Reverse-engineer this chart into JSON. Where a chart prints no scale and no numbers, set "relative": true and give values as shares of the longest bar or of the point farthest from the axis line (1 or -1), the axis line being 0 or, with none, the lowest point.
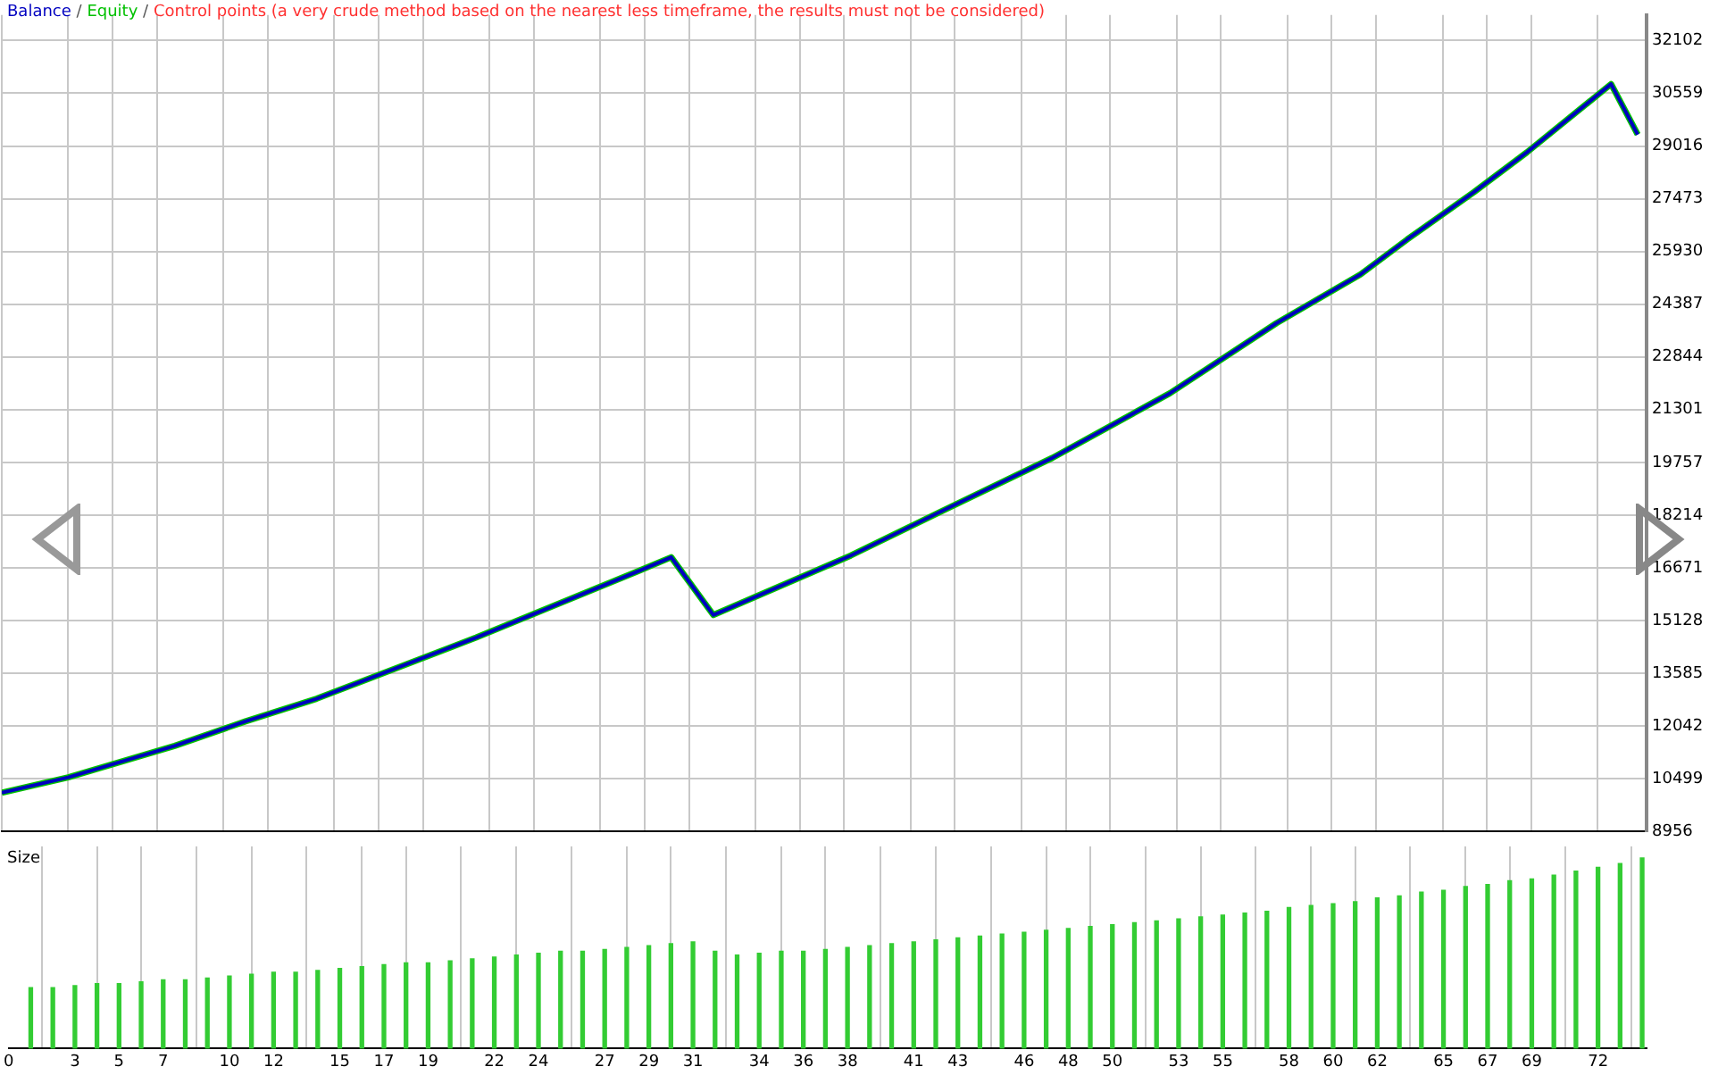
{
  "chart_data": [
    {
      "type": "line",
      "legend": "top left",
      "grid": true,
      "marker": "none",
      "tick_labels": "y",
      "annotations": [
        "/",
        "/",
        "Control points (a very crude method based on the nearest less timeframe, the results must not be considered)"
      ],
      "x": [
        0,
        3.0,
        7.8,
        11.0,
        14.2,
        21.4,
        28.7,
        30.2,
        32.1,
        38.3,
        42.5,
        47.4,
        52.7,
        57.5,
        61.3,
        63.4,
        66.4,
        68.8,
        72.6,
        73.8
      ],
      "series": [
        {
          "name": "Equity",
          "color": "#00c000",
          "values": [
            10090,
            10540,
            11460,
            12180,
            12840,
            14630,
            16570,
            16980,
            15290,
            17030,
            18360,
            19890,
            21780,
            23830,
            25260,
            26280,
            27660,
            28830,
            30830,
            29350
          ]
        },
        {
          "name": "Balance",
          "color": "#0000c0",
          "values": [
            10090,
            10540,
            11460,
            12180,
            12840,
            14630,
            16570,
            16980,
            15290,
            17030,
            18360,
            19890,
            21780,
            23830,
            25260,
            26280,
            27660,
            28830,
            30830,
            29350
          ]
        }
      ],
      "xlim": [
        0,
        74.2
      ],
      "xticks": [
        0,
        3,
        5,
        7,
        10,
        12,
        15,
        17,
        19,
        22,
        24,
        27,
        29,
        31,
        34,
        36,
        38,
        41,
        43,
        46,
        48,
        50,
        53,
        55,
        58,
        60,
        62,
        65,
        67,
        69,
        72
      ],
      "ylim": [
        8956,
        32850
      ],
      "yticks": [
        8956,
        10499,
        12042,
        13585,
        15128,
        16671,
        18214,
        19757,
        21301,
        22844,
        24387,
        25930,
        27473,
        29016,
        30559,
        32102
      ]
    },
    {
      "type": "bar",
      "title": "Size",
      "relative": true,
      "grid": "x",
      "tick_labels": "x",
      "color": "#33cc33",
      "x": [
        1,
        2,
        3,
        4,
        5,
        6,
        7,
        8,
        9,
        10,
        11,
        12,
        13,
        14,
        15,
        16,
        17,
        18,
        19,
        20,
        21,
        22,
        23,
        24,
        25,
        26,
        27,
        28,
        29,
        30,
        31,
        32,
        33,
        34,
        35,
        36,
        37,
        38,
        39,
        40,
        41,
        42,
        43,
        44,
        45,
        46,
        47,
        48,
        49,
        50,
        51,
        52,
        53,
        54,
        55,
        56,
        57,
        58,
        59,
        60,
        61,
        62,
        63,
        64,
        65,
        66,
        67,
        68,
        69,
        70,
        71,
        72,
        73,
        74
      ],
      "values": [
        0.32,
        0.32,
        0.33,
        0.34,
        0.34,
        0.35,
        0.36,
        0.36,
        0.37,
        0.38,
        0.39,
        0.4,
        0.4,
        0.41,
        0.42,
        0.43,
        0.44,
        0.45,
        0.45,
        0.46,
        0.47,
        0.48,
        0.49,
        0.5,
        0.51,
        0.51,
        0.52,
        0.53,
        0.54,
        0.55,
        0.56,
        0.51,
        0.49,
        0.5,
        0.51,
        0.51,
        0.52,
        0.53,
        0.54,
        0.55,
        0.56,
        0.57,
        0.58,
        0.59,
        0.6,
        0.61,
        0.62,
        0.63,
        0.64,
        0.65,
        0.66,
        0.67,
        0.68,
        0.69,
        0.7,
        0.71,
        0.72,
        0.74,
        0.75,
        0.76,
        0.77,
        0.79,
        0.8,
        0.82,
        0.83,
        0.85,
        0.86,
        0.88,
        0.89,
        0.91,
        0.93,
        0.95,
        0.97,
        1
      ],
      "xlim": [
        0,
        74.2
      ],
      "xticks": [
        0,
        3,
        5,
        7,
        10,
        12,
        15,
        17,
        19,
        22,
        24,
        27,
        29,
        31,
        34,
        36,
        38,
        41,
        43,
        46,
        48,
        50,
        53,
        55,
        58,
        60,
        62,
        65,
        67,
        69,
        72
      ]
    }
  ]
}
